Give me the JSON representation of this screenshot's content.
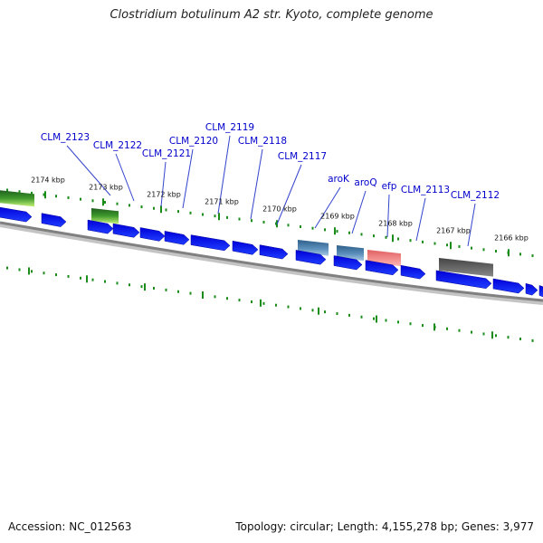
{
  "title": "Clostridium botulinum A2 str. Kyoto, complete genome",
  "accession": "Accession: NC_012563",
  "summary": "Topology: circular; Length: 4,155,278 bp; Genes: 3,977",
  "colors": {
    "backbone": "#808080",
    "cds": "#0000ee",
    "tick": "#1a8c1a",
    "label_line": "#3344cc",
    "label_text": "#0000cc"
  },
  "kbp_ticks": [
    "2174 kbp",
    "2173 kbp",
    "2172 kbp",
    "2171 kbp",
    "2170 kbp",
    "2169 kbp",
    "2168 kbp",
    "2167 kbp",
    "2166 kbp"
  ],
  "gene_labels": [
    "CLM_2123",
    "CLM_2122",
    "CLM_2121",
    "CLM_2120",
    "CLM_2119",
    "CLM_2118",
    "CLM_2117",
    "aroK",
    "aroQ",
    "efp",
    "CLM_2113",
    "CLM_2112"
  ]
}
